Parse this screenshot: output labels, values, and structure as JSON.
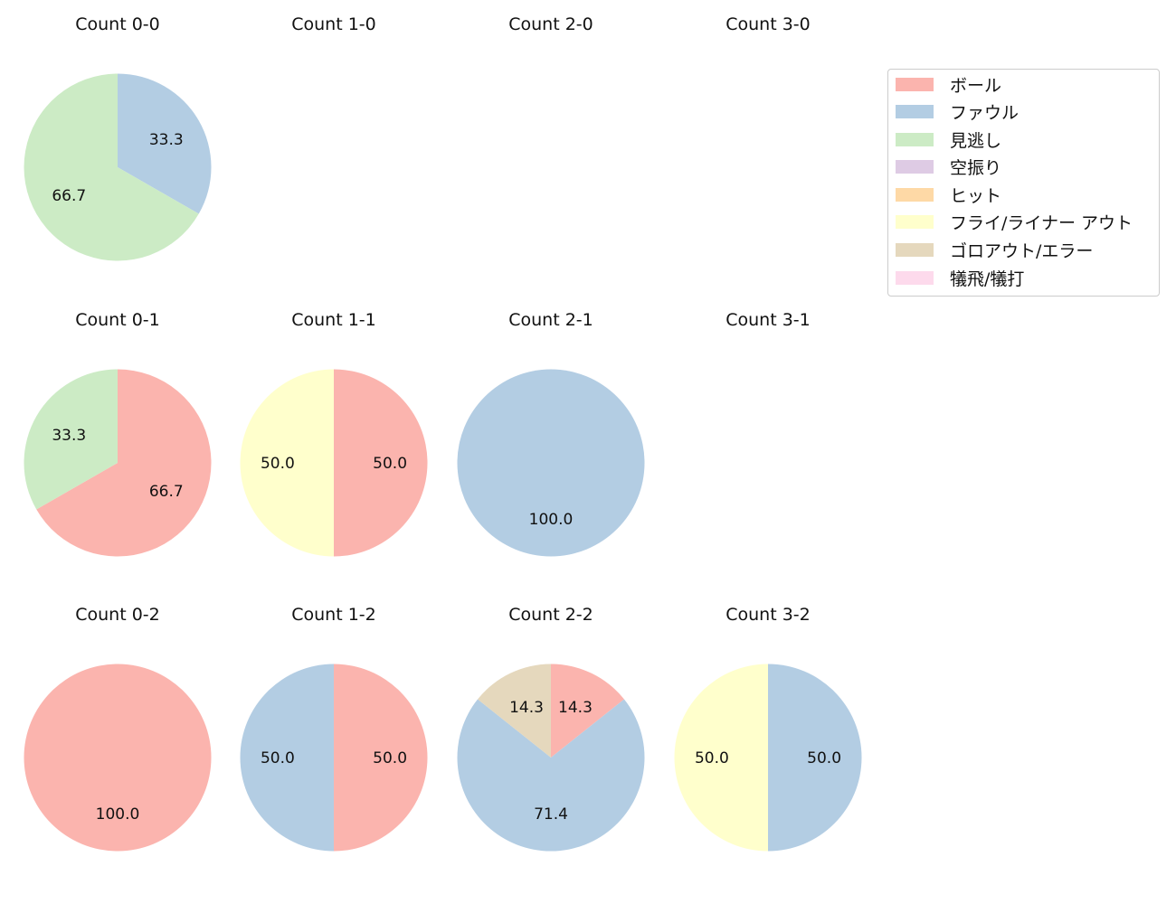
{
  "chart_data": {
    "type": "pie",
    "legend": {
      "position": "upper right",
      "entries": [
        {
          "label": "ボール",
          "color": "#fbb4ae"
        },
        {
          "label": "ファウル",
          "color": "#b3cde3"
        },
        {
          "label": "見逃し",
          "color": "#ccebc5"
        },
        {
          "label": "空振り",
          "color": "#decbe4"
        },
        {
          "label": "ヒット",
          "color": "#fed9a6"
        },
        {
          "label": "フライ/ライナー アウト",
          "color": "#ffffcc"
        },
        {
          "label": "ゴロアウト/エラー",
          "color": "#e5d8bd"
        },
        {
          "label": "犠飛/犠打",
          "color": "#fddaec"
        }
      ]
    },
    "charts": [
      {
        "title": "Count 0-0",
        "row": 0,
        "col": 0,
        "slices": [
          {
            "label": "ファウル",
            "value": 33.3
          },
          {
            "label": "見逃し",
            "value": 66.7
          }
        ]
      },
      {
        "title": "Count 1-0",
        "row": 0,
        "col": 1,
        "slices": []
      },
      {
        "title": "Count 2-0",
        "row": 0,
        "col": 2,
        "slices": []
      },
      {
        "title": "Count 3-0",
        "row": 0,
        "col": 3,
        "slices": []
      },
      {
        "title": "Count 0-1",
        "row": 1,
        "col": 0,
        "slices": [
          {
            "label": "ボール",
            "value": 66.7
          },
          {
            "label": "見逃し",
            "value": 33.3
          }
        ]
      },
      {
        "title": "Count 1-1",
        "row": 1,
        "col": 1,
        "slices": [
          {
            "label": "ボール",
            "value": 50.0
          },
          {
            "label": "フライ/ライナー アウト",
            "value": 50.0
          }
        ]
      },
      {
        "title": "Count 2-1",
        "row": 1,
        "col": 2,
        "slices": [
          {
            "label": "ファウル",
            "value": 100.0
          }
        ]
      },
      {
        "title": "Count 3-1",
        "row": 1,
        "col": 3,
        "slices": []
      },
      {
        "title": "Count 0-2",
        "row": 2,
        "col": 0,
        "slices": [
          {
            "label": "ボール",
            "value": 100.0
          }
        ]
      },
      {
        "title": "Count 1-2",
        "row": 2,
        "col": 1,
        "slices": [
          {
            "label": "ボール",
            "value": 50.0
          },
          {
            "label": "ファウル",
            "value": 50.0
          }
        ]
      },
      {
        "title": "Count 2-2",
        "row": 2,
        "col": 2,
        "slices": [
          {
            "label": "ボール",
            "value": 14.3
          },
          {
            "label": "ファウル",
            "value": 71.4
          },
          {
            "label": "ゴロアウト/エラー",
            "value": 14.3
          }
        ]
      },
      {
        "title": "Count 3-2",
        "row": 2,
        "col": 3,
        "slices": [
          {
            "label": "ファウル",
            "value": 50.0
          },
          {
            "label": "フライ/ライナー アウト",
            "value": 50.0
          }
        ]
      }
    ]
  }
}
